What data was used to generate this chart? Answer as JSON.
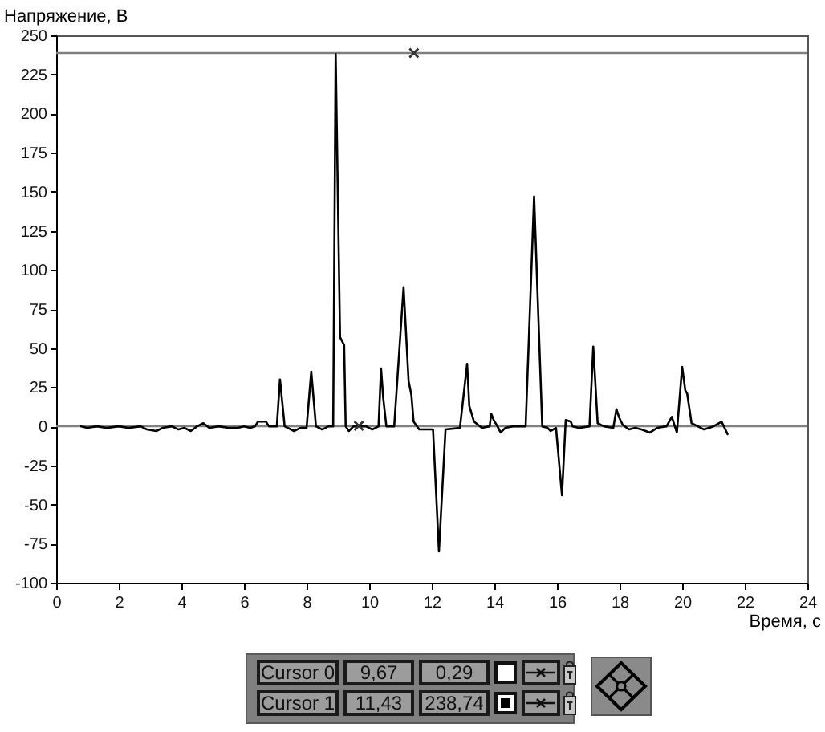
{
  "chart_data": {
    "type": "line",
    "xlabel": "Время, с",
    "ylabel": "Напряжение, В",
    "xlim": [
      0,
      24
    ],
    "xticks": [
      0,
      2,
      4,
      6,
      8,
      10,
      12,
      14,
      16,
      18,
      20,
      22,
      24
    ],
    "ylim": [
      -100,
      250
    ],
    "yticks": [
      -100,
      -75,
      -50,
      -25,
      0,
      25,
      50,
      75,
      100,
      125,
      150,
      175,
      200,
      225,
      250
    ],
    "series": [
      {
        "type": "line",
        "color": "#000000",
        "x": [
          0.8,
          1.0,
          1.3,
          1.6,
          2.0,
          2.3,
          2.7,
          2.9,
          3.2,
          3.4,
          3.7,
          3.9,
          4.1,
          4.3,
          4.5,
          4.7,
          4.9,
          5.2,
          5.5,
          5.8,
          6.0,
          6.2,
          6.35,
          6.45,
          6.7,
          6.8,
          7.05,
          7.15,
          7.3,
          7.6,
          7.8,
          8.0,
          8.15,
          8.3,
          8.5,
          8.7,
          8.85,
          8.93,
          9.07,
          9.2,
          9.25,
          9.35,
          9.5,
          9.7,
          9.9,
          10.1,
          10.3,
          10.38,
          10.45,
          10.55,
          10.8,
          11.1,
          11.26,
          11.35,
          11.42,
          11.6,
          12.04,
          12.23,
          12.44,
          12.9,
          13.13,
          13.2,
          13.35,
          13.6,
          13.85,
          13.9,
          13.98,
          14.1,
          14.2,
          14.35,
          14.6,
          15.0,
          15.27,
          15.53,
          15.7,
          15.8,
          15.97,
          16.16,
          16.28,
          16.44,
          16.5,
          16.7,
          17.04,
          17.16,
          17.3,
          17.5,
          17.8,
          17.9,
          17.98,
          18.1,
          18.3,
          18.5,
          18.7,
          18.97,
          19.2,
          19.5,
          19.67,
          19.83,
          20.0,
          20.1,
          20.16,
          20.3,
          20.5,
          20.7,
          21.0,
          21.26,
          21.45
        ],
        "values": [
          0,
          -1,
          0,
          -1,
          0,
          -1,
          0,
          -2,
          -3,
          -1,
          0,
          -2,
          -1,
          -3,
          0,
          2,
          -1,
          0,
          -1,
          -1,
          0,
          -1,
          0,
          3,
          3,
          0,
          0,
          30,
          0,
          -3,
          -1,
          -1,
          35,
          0,
          -2,
          0,
          0,
          238,
          57,
          52,
          0,
          -3,
          0,
          0,
          0,
          -2,
          0,
          37,
          18,
          0,
          0,
          89,
          29,
          20,
          3,
          -2,
          -2,
          -80,
          -2,
          -1,
          40,
          13,
          3,
          -1,
          0,
          8,
          4,
          0,
          -4,
          -1,
          0,
          0,
          147,
          0,
          -1,
          -3,
          -1,
          -44,
          4,
          3,
          0,
          -1,
          0,
          51,
          2,
          0,
          -1,
          11,
          6,
          1,
          -2,
          -1,
          -2,
          -4,
          -1,
          0,
          6,
          -4,
          38,
          23,
          21,
          2,
          0,
          -2,
          0,
          3,
          -5
        ]
      },
      {
        "type": "scatter",
        "marker": "cross",
        "color": "#333333",
        "x": [
          9.67,
          11.43
        ],
        "values": [
          0.29,
          238.74
        ]
      }
    ],
    "ref_lines": [
      {
        "axis": "y",
        "value": 0,
        "color": "#808080"
      },
      {
        "axis": "y",
        "value": 238.74,
        "color": "#808080"
      }
    ],
    "annotations": [
      "Cursor 0",
      "9,67",
      "0,29",
      "Cursor 1",
      "11,43",
      "238,74"
    ]
  }
}
